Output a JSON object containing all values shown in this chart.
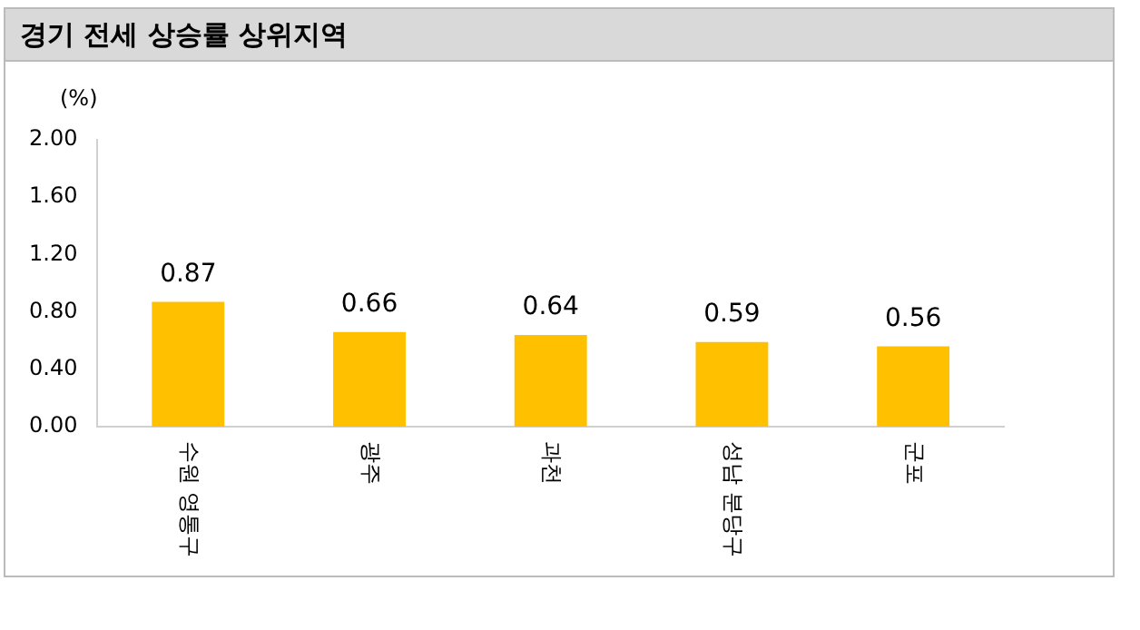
{
  "chart_data": {
    "type": "bar",
    "title": "경기 전세 상승률 상위지역",
    "ylabel": "(%)",
    "categories": [
      "수원 영통구",
      "광주",
      "과천",
      "성남 분당구",
      "군포"
    ],
    "values": [
      0.87,
      0.66,
      0.64,
      0.59,
      0.56
    ],
    "color": "#ffc000",
    "ylim": [
      0,
      2
    ],
    "yticks": [
      {
        "value": 0,
        "label": "0.00"
      },
      {
        "value": 0.4,
        "label": "0.40"
      },
      {
        "value": 0.8,
        "label": "0.80"
      },
      {
        "value": 1.2,
        "label": "1.20"
      },
      {
        "value": 1.6,
        "label": "1.60"
      },
      {
        "value": 2,
        "label": "2.00"
      }
    ],
    "grid": false,
    "legend": false,
    "data_labels": true
  }
}
